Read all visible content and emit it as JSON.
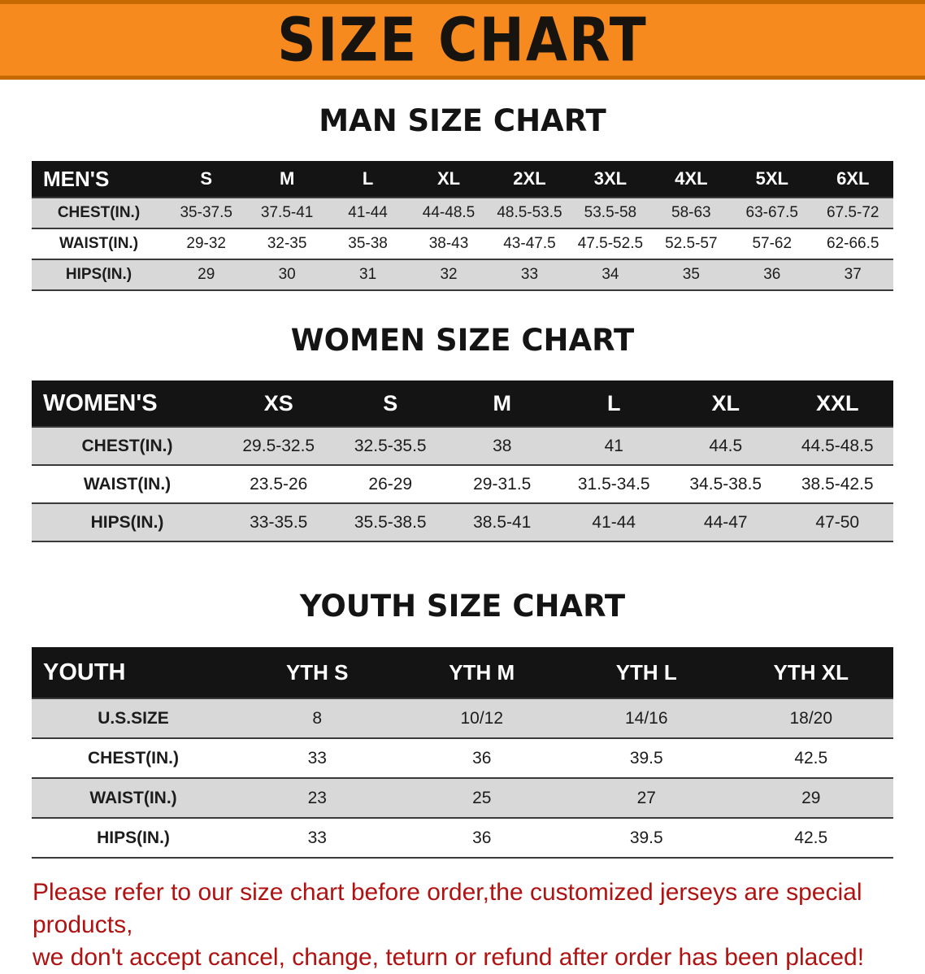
{
  "banner": {
    "title": "SIZE CHART"
  },
  "colors": {
    "banner_bg": "#f68a1e",
    "banner_edge": "#c56a00",
    "header_bg": "#141414",
    "row_alt": "#d8d8d8",
    "footer_text": "#b01212"
  },
  "sections": [
    {
      "id": "men",
      "heading": "MAN SIZE CHART",
      "table": {
        "header": [
          "MEN'S",
          "S",
          "M",
          "L",
          "XL",
          "2XL",
          "3XL",
          "4XL",
          "5XL",
          "6XL"
        ],
        "rows": [
          [
            "CHEST(IN.)",
            "35-37.5",
            "37.5-41",
            "41-44",
            "44-48.5",
            "48.5-53.5",
            "53.5-58",
            "58-63",
            "63-67.5",
            "67.5-72"
          ],
          [
            "WAIST(IN.)",
            "29-32",
            "32-35",
            "35-38",
            "38-43",
            "43-47.5",
            "47.5-52.5",
            "52.5-57",
            "57-62",
            "62-66.5"
          ],
          [
            "HIPS(IN.)",
            "29",
            "30",
            "31",
            "32",
            "33",
            "34",
            "35",
            "36",
            "37"
          ]
        ]
      }
    },
    {
      "id": "women",
      "heading": "WOMEN SIZE CHART",
      "table": {
        "header": [
          "WOMEN'S",
          "XS",
          "S",
          "M",
          "L",
          "XL",
          "XXL"
        ],
        "rows": [
          [
            "CHEST(IN.)",
            "29.5-32.5",
            "32.5-35.5",
            "38",
            "41",
            "44.5",
            "44.5-48.5"
          ],
          [
            "WAIST(IN.)",
            "23.5-26",
            "26-29",
            "29-31.5",
            "31.5-34.5",
            "34.5-38.5",
            "38.5-42.5"
          ],
          [
            "HIPS(IN.)",
            "33-35.5",
            "35.5-38.5",
            "38.5-41",
            "41-44",
            "44-47",
            "47-50"
          ]
        ]
      }
    },
    {
      "id": "youth",
      "heading": "YOUTH SIZE CHART",
      "table": {
        "header": [
          "YOUTH",
          "YTH S",
          "YTH M",
          "YTH L",
          "YTH XL"
        ],
        "rows": [
          [
            "U.S.SIZE",
            "8",
            "10/12",
            "14/16",
            "18/20"
          ],
          [
            "CHEST(IN.)",
            "33",
            "36",
            "39.5",
            "42.5"
          ],
          [
            "WAIST(IN.)",
            "23",
            "25",
            "27",
            "29"
          ],
          [
            "HIPS(IN.)",
            "33",
            "36",
            "39.5",
            "42.5"
          ]
        ]
      }
    }
  ],
  "footer": {
    "line1": "Please refer to our size chart before order,the customized jerseys are special products,",
    "line2": "we don't accept cancel, change, teturn or refund after order has been placed!"
  }
}
